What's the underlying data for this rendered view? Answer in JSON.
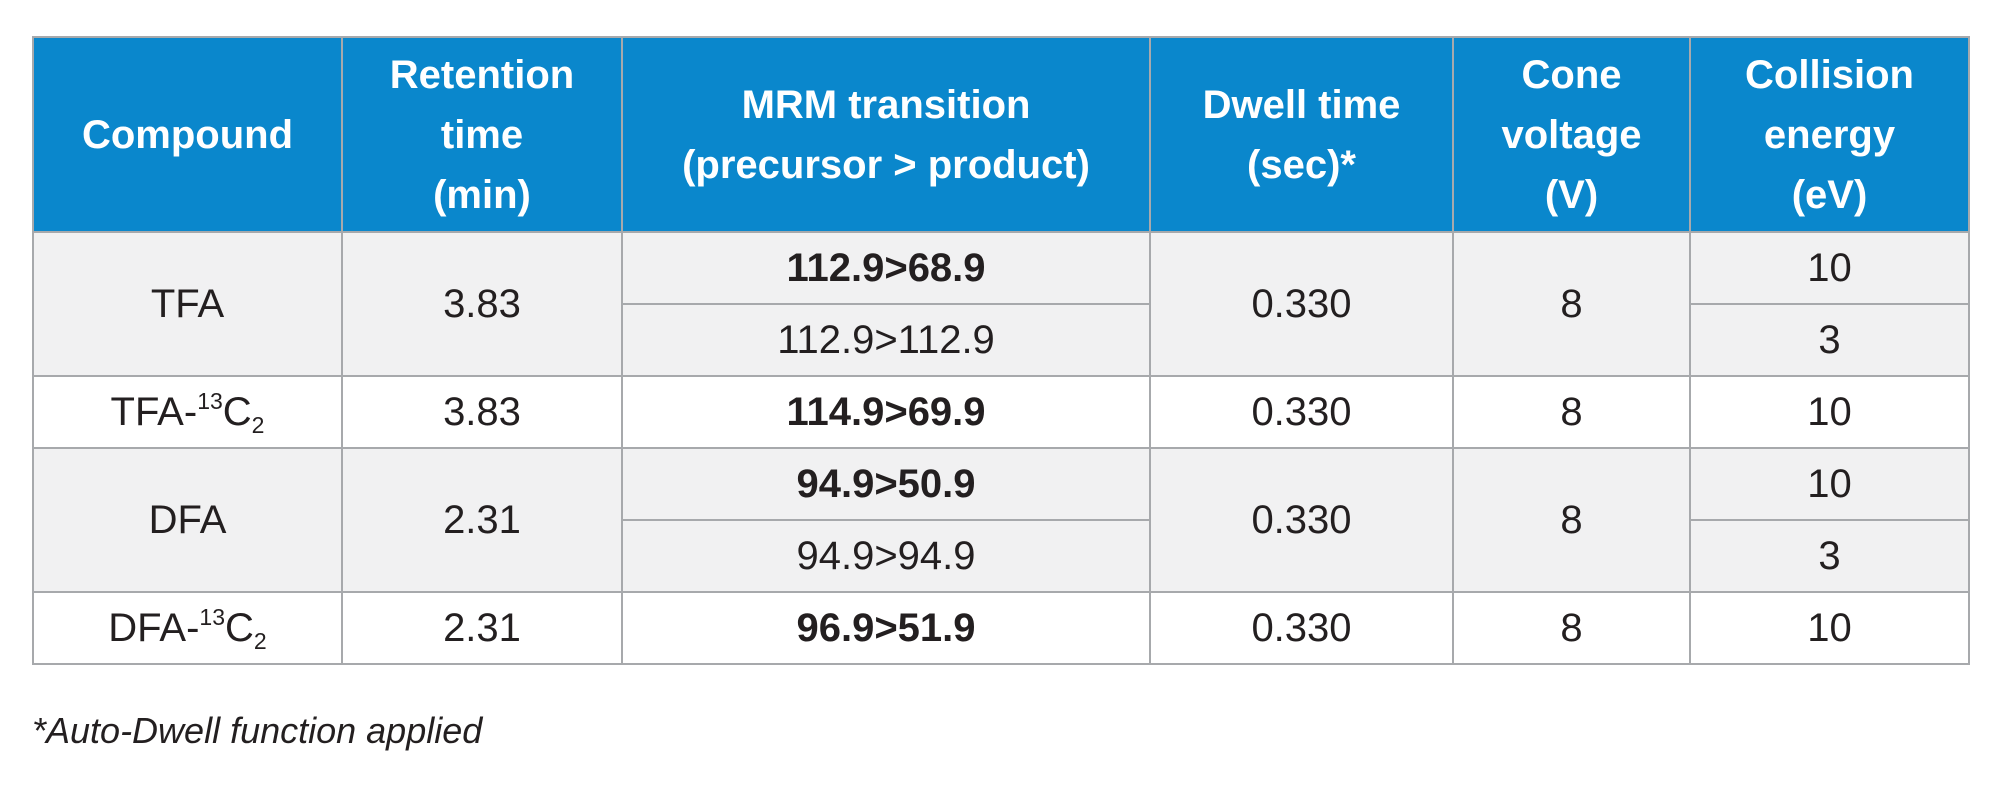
{
  "table": {
    "headers": [
      [
        "Compound"
      ],
      [
        "Retention",
        "time",
        "(min)"
      ],
      [
        "MRM transition",
        "(precursor > product)"
      ],
      [
        "Dwell time",
        "(sec)*"
      ],
      [
        "Cone",
        "voltage",
        "(V)"
      ],
      [
        "Collision",
        "energy",
        "(eV)"
      ]
    ],
    "rows": [
      {
        "compound": {
          "base": "TFA",
          "sup": "",
          "el": "",
          "sub": ""
        },
        "retention_time": "3.83",
        "transitions": [
          {
            "mrm": "112.9>68.9",
            "primary": true,
            "collision_energy": "10"
          },
          {
            "mrm": "112.9>112.9",
            "primary": false,
            "collision_energy": "3"
          }
        ],
        "dwell_time": "0.330",
        "cone_voltage": "8"
      },
      {
        "compound": {
          "base": "TFA-",
          "sup": "13",
          "el": "C",
          "sub": "2"
        },
        "retention_time": "3.83",
        "transitions": [
          {
            "mrm": "114.9>69.9",
            "primary": true,
            "collision_energy": "10"
          }
        ],
        "dwell_time": "0.330",
        "cone_voltage": "8"
      },
      {
        "compound": {
          "base": "DFA",
          "sup": "",
          "el": "",
          "sub": ""
        },
        "retention_time": "2.31",
        "transitions": [
          {
            "mrm": "94.9>50.9",
            "primary": true,
            "collision_energy": "10"
          },
          {
            "mrm": "94.9>94.9",
            "primary": false,
            "collision_energy": "3"
          }
        ],
        "dwell_time": "0.330",
        "cone_voltage": "8"
      },
      {
        "compound": {
          "base": "DFA-",
          "sup": "13",
          "el": "C",
          "sub": "2"
        },
        "retention_time": "2.31",
        "transitions": [
          {
            "mrm": "96.9>51.9",
            "primary": true,
            "collision_energy": "10"
          }
        ],
        "dwell_time": "0.330",
        "cone_voltage": "8"
      }
    ]
  },
  "footnote": "*Auto-Dwell function applied",
  "colors": {
    "header_bg": "#0a87cc",
    "header_text": "#ffffff",
    "shaded_row": "#f1f1f2",
    "border": "#a7a9ac"
  }
}
